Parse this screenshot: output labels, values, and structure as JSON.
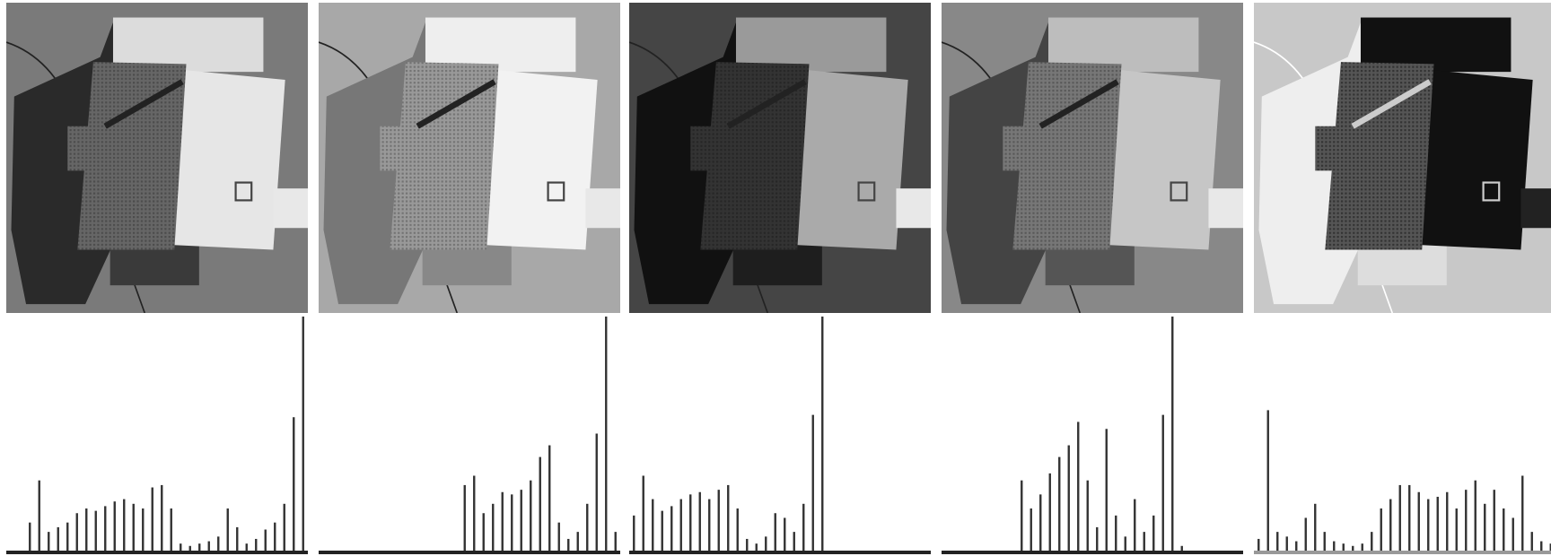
{
  "chart_data": [
    {
      "type": "histogram",
      "color": "#333333",
      "bins": [
        0,
        8,
        16,
        24,
        32,
        40,
        48,
        56,
        64,
        72,
        80,
        88,
        96,
        104,
        112,
        120,
        128,
        136,
        144,
        152,
        160,
        168,
        176,
        184,
        192,
        200,
        208,
        216,
        224,
        232,
        240,
        248,
        256
      ],
      "values": [
        0,
        0,
        12,
        30,
        8,
        10,
        12,
        16,
        18,
        17,
        19,
        21,
        22,
        20,
        18,
        27,
        28,
        18,
        3,
        2,
        3,
        4,
        6,
        18,
        10,
        3,
        5,
        9,
        12,
        20,
        57,
        100
      ]
    },
    {
      "type": "histogram",
      "color": "#333333",
      "bins": [
        0,
        8,
        16,
        24,
        32,
        40,
        48,
        56,
        64,
        72,
        80,
        88,
        96,
        104,
        112,
        120,
        128,
        136,
        144,
        152,
        160,
        168,
        176,
        184,
        192,
        200,
        208,
        216,
        224,
        232,
        240,
        248,
        256
      ],
      "values": [
        0,
        0,
        0,
        0,
        0,
        0,
        0,
        0,
        0,
        0,
        0,
        0,
        0,
        0,
        0,
        28,
        32,
        16,
        20,
        25,
        24,
        26,
        30,
        40,
        45,
        12,
        5,
        8,
        20,
        50,
        100,
        8
      ]
    },
    {
      "type": "histogram",
      "color": "#333333",
      "bins": [
        0,
        8,
        16,
        24,
        32,
        40,
        48,
        56,
        64,
        72,
        80,
        88,
        96,
        104,
        112,
        120,
        128,
        136,
        144,
        152,
        160,
        168,
        176,
        184,
        192,
        200,
        208,
        216,
        224,
        232,
        240,
        248,
        256
      ],
      "values": [
        15,
        32,
        22,
        17,
        19,
        22,
        24,
        25,
        22,
        26,
        28,
        18,
        5,
        3,
        6,
        16,
        14,
        8,
        20,
        58,
        100,
        0,
        0,
        0,
        0,
        0,
        0,
        0,
        0,
        0,
        0,
        0
      ]
    },
    {
      "type": "histogram",
      "color": "#333333",
      "bins": [
        0,
        8,
        16,
        24,
        32,
        40,
        48,
        56,
        64,
        72,
        80,
        88,
        96,
        104,
        112,
        120,
        128,
        136,
        144,
        152,
        160,
        168,
        176,
        184,
        192,
        200,
        208,
        216,
        224,
        232,
        240,
        248,
        256
      ],
      "values": [
        0,
        0,
        0,
        0,
        0,
        0,
        0,
        0,
        30,
        18,
        24,
        33,
        40,
        45,
        55,
        30,
        10,
        52,
        15,
        6,
        22,
        8,
        15,
        58,
        100,
        2,
        0,
        0,
        0,
        0,
        0,
        0
      ]
    },
    {
      "type": "histogram",
      "color": "#333333",
      "bins": [
        0,
        8,
        16,
        24,
        32,
        40,
        48,
        56,
        64,
        72,
        80,
        88,
        96,
        104,
        112,
        120,
        128,
        136,
        144,
        152,
        160,
        168,
        176,
        184,
        192,
        200,
        208,
        216,
        224,
        232,
        240,
        248,
        256
      ],
      "values": [
        5,
        60,
        8,
        6,
        4,
        14,
        20,
        8,
        4,
        3,
        2,
        3,
        8,
        18,
        22,
        28,
        28,
        25,
        22,
        23,
        25,
        18,
        26,
        30,
        20,
        26,
        18,
        14,
        32,
        8,
        4,
        3
      ]
    }
  ]
}
